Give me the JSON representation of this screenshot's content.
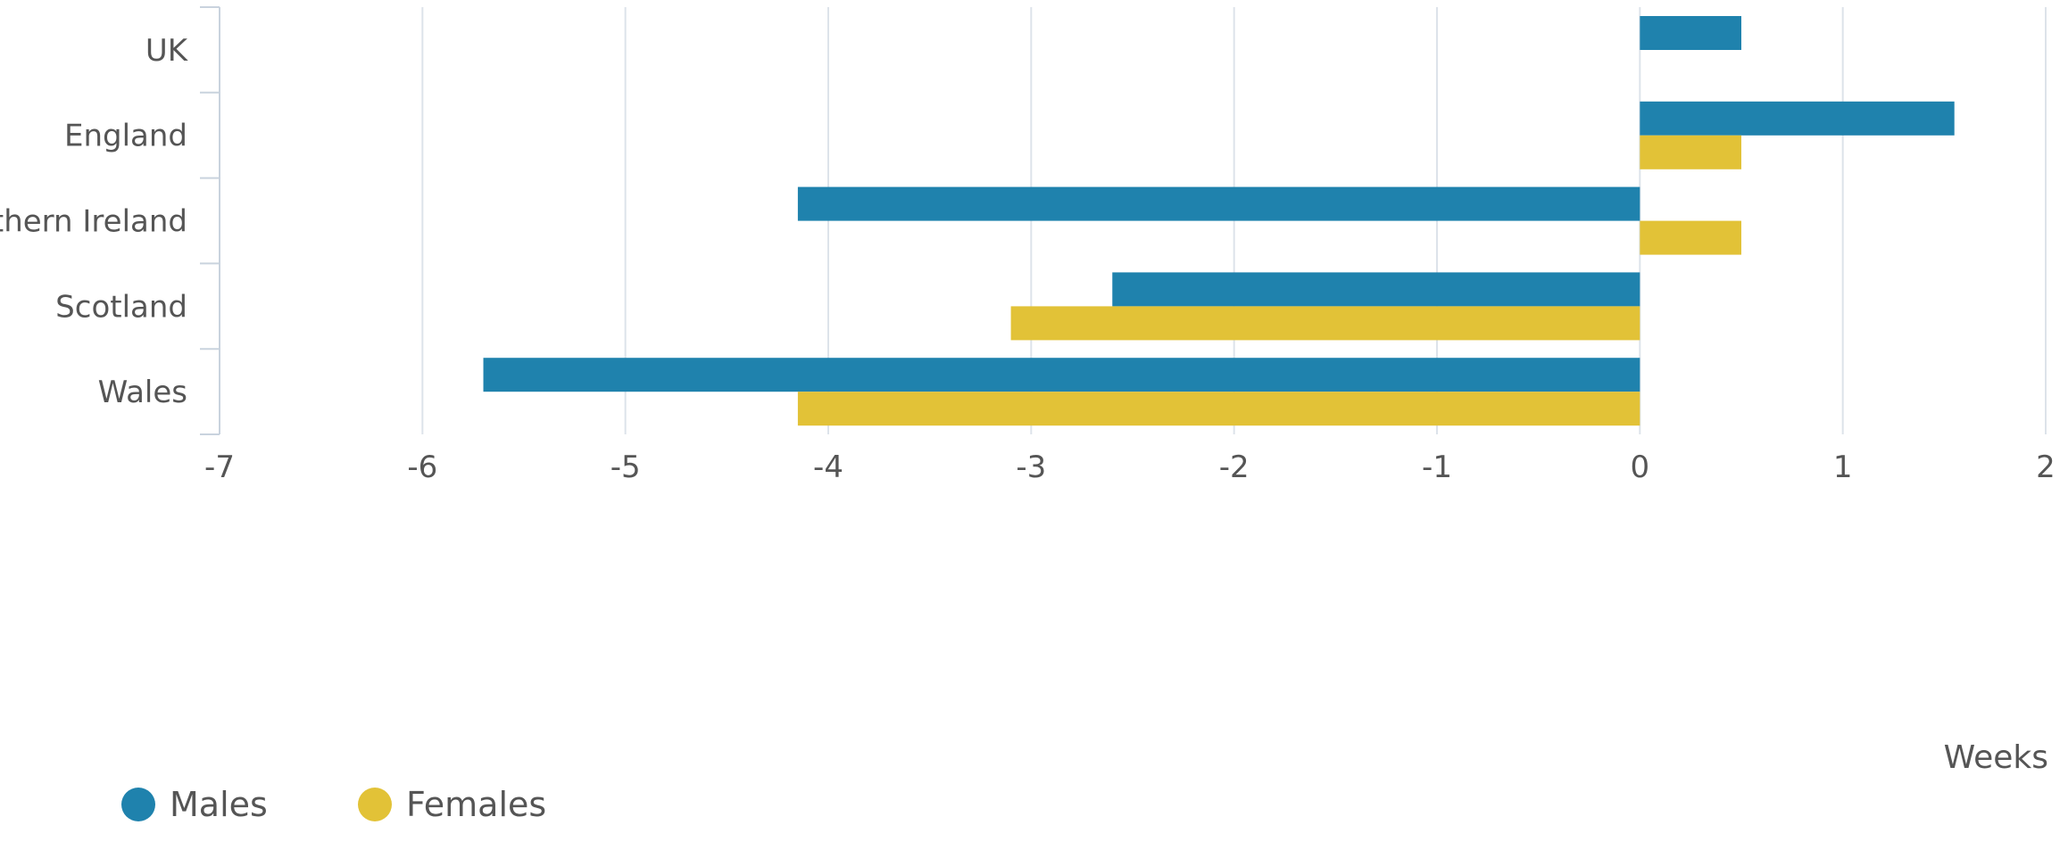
{
  "chart_data": {
    "type": "bar",
    "orientation": "horizontal",
    "categories": [
      "UK",
      "England",
      "Northern Ireland",
      "Scotland",
      "Wales"
    ],
    "series": [
      {
        "name": "Males",
        "color": "#1f82ad",
        "values": [
          0.5,
          1.55,
          -4.15,
          -2.6,
          -5.7
        ]
      },
      {
        "name": "Females",
        "color": "#e2c237",
        "values": [
          0,
          0.5,
          0.5,
          -3.1,
          -4.15
        ]
      }
    ],
    "xlabel": "Weeks",
    "xlim": [
      -7,
      2
    ],
    "xticks": [
      -7,
      -6,
      -5,
      -4,
      -3,
      -2,
      -1,
      0,
      1,
      2
    ],
    "grid": "vertical",
    "legend": "bottom-left"
  }
}
